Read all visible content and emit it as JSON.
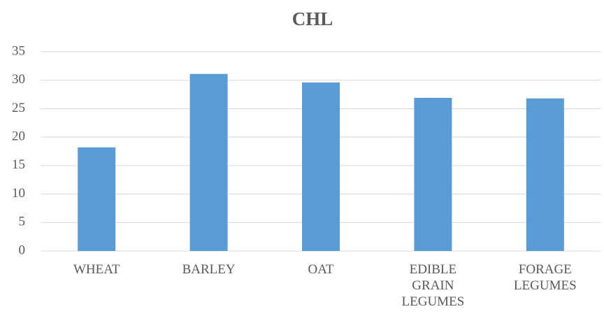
{
  "chart_data": {
    "type": "bar",
    "title": "CHL",
    "categories": [
      "WHEAT",
      "BARLEY",
      "OAT",
      "EDIBLE GRAIN LEGUMES",
      "FORAGE LEGUMES"
    ],
    "values": [
      18.2,
      31.1,
      29.6,
      26.9,
      26.8
    ],
    "color": "#5b9bd5",
    "ylim": [
      0,
      35
    ],
    "yticks": [
      0,
      5,
      10,
      15,
      20,
      25,
      30,
      35
    ],
    "grid": true
  }
}
